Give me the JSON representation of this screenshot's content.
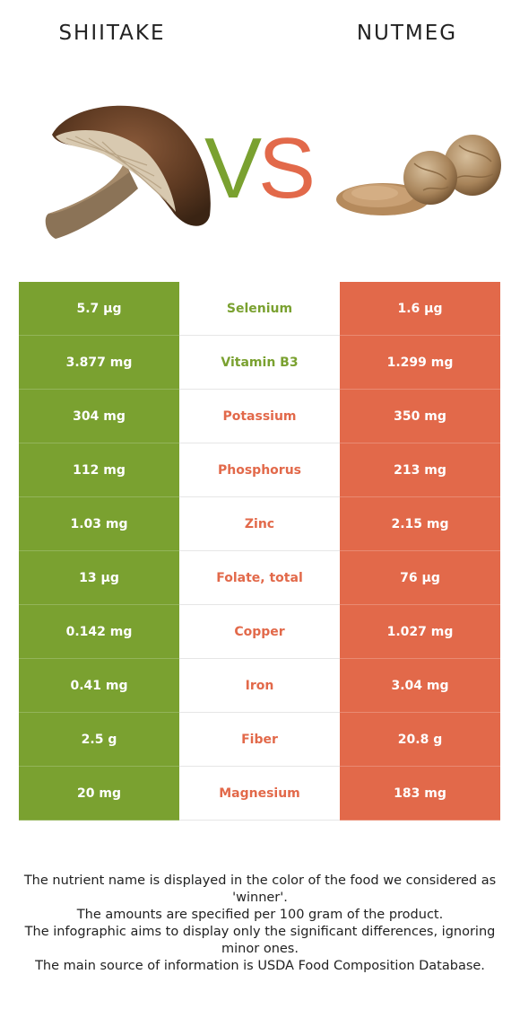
{
  "food_left": {
    "name": "SHIITAKE",
    "color": "#7aa130"
  },
  "food_right": {
    "name": "NUTMEG",
    "color": "#e2694a"
  },
  "vs": {
    "v": "V",
    "s": "S"
  },
  "rows": [
    {
      "left": "5.7 µg",
      "nutrient": "Selenium",
      "right": "1.6 µg",
      "winner": "left"
    },
    {
      "left": "3.877 mg",
      "nutrient": "Vitamin B3",
      "right": "1.299 mg",
      "winner": "left"
    },
    {
      "left": "304 mg",
      "nutrient": "Potassium",
      "right": "350 mg",
      "winner": "right"
    },
    {
      "left": "112 mg",
      "nutrient": "Phosphorus",
      "right": "213 mg",
      "winner": "right"
    },
    {
      "left": "1.03 mg",
      "nutrient": "Zinc",
      "right": "2.15 mg",
      "winner": "right"
    },
    {
      "left": "13 µg",
      "nutrient": "Folate, total",
      "right": "76 µg",
      "winner": "right"
    },
    {
      "left": "0.142 mg",
      "nutrient": "Copper",
      "right": "1.027 mg",
      "winner": "right"
    },
    {
      "left": "0.41 mg",
      "nutrient": "Iron",
      "right": "3.04 mg",
      "winner": "right"
    },
    {
      "left": "2.5 g",
      "nutrient": "Fiber",
      "right": "20.8 g",
      "winner": "right"
    },
    {
      "left": "20 mg",
      "nutrient": "Magnesium",
      "right": "183 mg",
      "winner": "right"
    }
  ],
  "notes": [
    "The nutrient name is displayed in the color of the food we considered as 'winner'.",
    "The amounts are specified per 100 gram of the product.",
    "The infographic aims to display only the significant differences, ignoring minor ones.",
    "The main source of information is USDA Food Composition Database."
  ]
}
